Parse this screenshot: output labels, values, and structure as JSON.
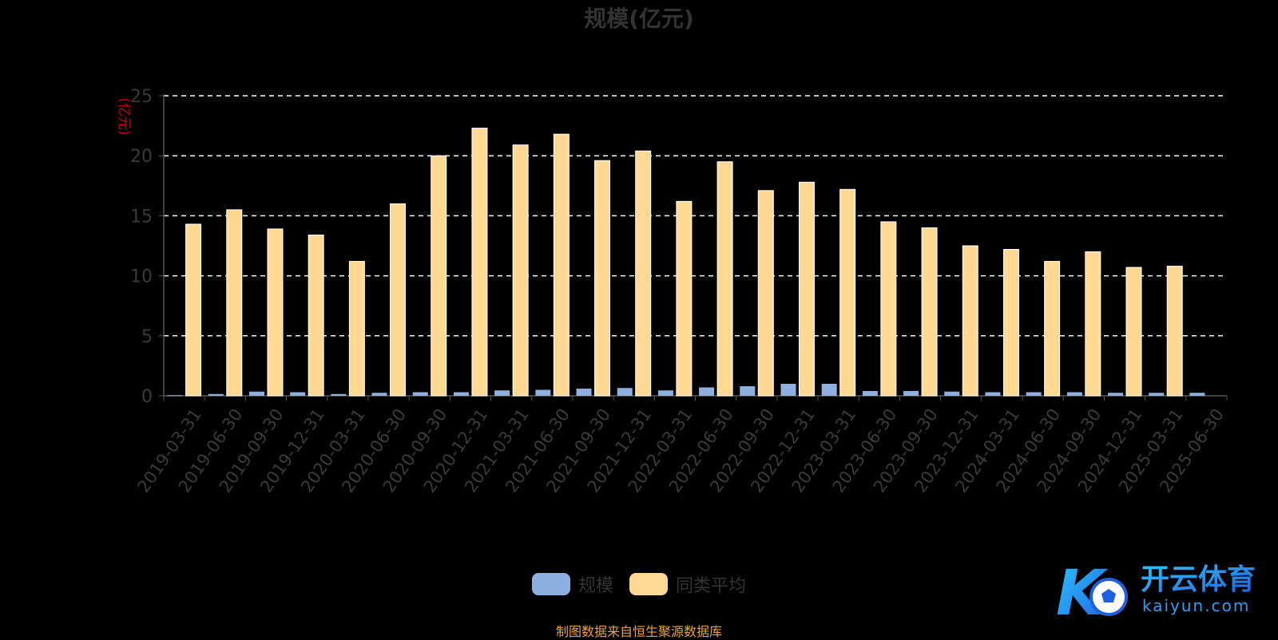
{
  "title": "规模(亿元)",
  "footer": "制图数据来自恒生聚源数据库",
  "colors": {
    "scale": "#8eb0e0",
    "avg": "#ffd894",
    "axis_text": "#3a3a3a",
    "unit": "#cc0000",
    "grid": "#ffffff"
  },
  "legend": [
    {
      "label": "规模",
      "color": "#8eb0e0"
    },
    {
      "label": "同类平均",
      "color": "#ffd894"
    }
  ],
  "logo": {
    "text": "开云体育",
    "domain": "kaiyun.com",
    "mark": "K"
  },
  "chart_data": {
    "type": "bar",
    "title": "规模(亿元)",
    "ylabel": "(亿元)",
    "xlabel": "",
    "ylim": [
      0,
      25
    ],
    "yticks": [
      0,
      5,
      10,
      15,
      20,
      25
    ],
    "grid": true,
    "legend_position": "bottom",
    "categories": [
      "2019-03-31",
      "2019-06-30",
      "2019-09-30",
      "2019-12-31",
      "2020-03-31",
      "2020-06-30",
      "2020-09-30",
      "2020-12-31",
      "2021-03-31",
      "2021-06-30",
      "2021-09-30",
      "2021-12-31",
      "2022-03-31",
      "2022-06-30",
      "2022-09-30",
      "2022-12-31",
      "2023-03-31",
      "2023-06-30",
      "2023-09-30",
      "2023-12-31",
      "2024-03-31",
      "2024-06-30",
      "2024-09-30",
      "2024-12-31",
      "2025-03-31",
      "2025-06-30"
    ],
    "series": [
      {
        "name": "规模",
        "values": [
          0.05,
          0.15,
          0.35,
          0.3,
          0.15,
          0.25,
          0.3,
          0.3,
          0.45,
          0.5,
          0.6,
          0.65,
          0.45,
          0.7,
          0.8,
          1.0,
          1.0,
          0.4,
          0.4,
          0.35,
          0.3,
          0.3,
          0.3,
          0.25,
          0.25,
          0.25
        ]
      },
      {
        "name": "同类平均",
        "values": [
          14.3,
          15.5,
          13.9,
          13.4,
          11.2,
          16.0,
          20.0,
          22.3,
          20.9,
          21.8,
          19.6,
          20.4,
          16.2,
          19.5,
          17.1,
          17.8,
          17.2,
          14.5,
          14.0,
          12.5,
          12.2,
          11.2,
          12.0,
          10.7,
          10.8,
          null
        ]
      }
    ]
  }
}
